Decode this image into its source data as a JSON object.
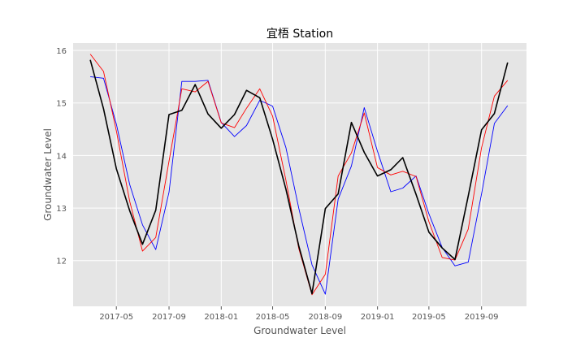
{
  "chart_data": {
    "type": "line",
    "title": "宜梧 Station",
    "xlabel": "Groundwater Level",
    "ylabel": "Groundwater Level",
    "xlim": [
      "2017-01-20",
      "2019-12-15"
    ],
    "ylim": [
      11.13,
      16.14
    ],
    "grid": true,
    "x_ticks": [
      "2017-05",
      "2017-09",
      "2018-01",
      "2018-05",
      "2018-09",
      "2019-01",
      "2019-05",
      "2019-09"
    ],
    "y_ticks": [
      12,
      13,
      14,
      15,
      16
    ],
    "x": [
      "2017-03",
      "2017-04",
      "2017-05",
      "2017-06",
      "2017-07",
      "2017-08",
      "2017-09",
      "2017-10",
      "2017-11",
      "2017-12",
      "2018-01",
      "2018-02",
      "2018-03",
      "2018-04",
      "2018-05",
      "2018-06",
      "2018-07",
      "2018-08",
      "2018-09",
      "2018-10",
      "2018-11",
      "2018-12",
      "2019-01",
      "2019-02",
      "2019-03",
      "2019-04",
      "2019-05",
      "2019-06",
      "2019-07",
      "2019-08",
      "2019-09",
      "2019-10",
      "2019-11"
    ],
    "series": [
      {
        "color": "#0000ff",
        "values": [
          15.5,
          15.47,
          14.6,
          13.45,
          12.68,
          12.21,
          13.3,
          15.41,
          15.41,
          15.43,
          14.63,
          14.36,
          14.57,
          15.05,
          14.94,
          14.15,
          13.0,
          11.92,
          11.36,
          13.17,
          13.8,
          14.91,
          14.08,
          13.31,
          13.38,
          13.61,
          12.89,
          12.25,
          11.9,
          11.97,
          13.27,
          14.61,
          14.95
        ]
      },
      {
        "color": "#ff0000",
        "values": [
          15.93,
          15.6,
          14.47,
          13.13,
          12.18,
          12.44,
          13.89,
          15.27,
          15.21,
          15.41,
          14.62,
          14.53,
          14.9,
          15.27,
          14.75,
          13.53,
          12.23,
          11.35,
          11.74,
          13.61,
          14.05,
          14.81,
          13.77,
          13.63,
          13.7,
          13.6,
          12.74,
          12.06,
          12.01,
          12.6,
          14.15,
          15.13,
          15.43
        ]
      },
      {
        "color": "#000000",
        "values": [
          15.82,
          14.89,
          13.75,
          12.95,
          12.31,
          12.96,
          14.78,
          14.86,
          15.35,
          14.79,
          14.52,
          14.78,
          15.24,
          15.1,
          14.31,
          13.36,
          12.28,
          11.37,
          12.99,
          13.27,
          14.63,
          14.06,
          13.61,
          13.73,
          13.96,
          13.26,
          12.54,
          12.24,
          12.02,
          13.23,
          14.49,
          14.8,
          15.77
        ]
      }
    ]
  }
}
